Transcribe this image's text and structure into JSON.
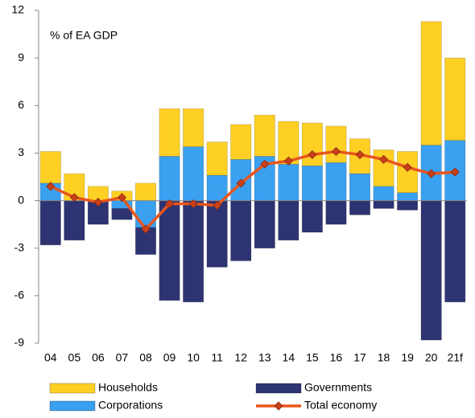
{
  "chart_data": {
    "type": "bar_line",
    "annotation": "% of  EA GDP",
    "categories": [
      "04",
      "05",
      "06",
      "07",
      "08",
      "09",
      "10",
      "11",
      "12",
      "13",
      "14",
      "15",
      "16",
      "17",
      "18",
      "19",
      "20",
      "21f"
    ],
    "series": [
      {
        "name": "Households",
        "type": "bar",
        "color": "#ffd024",
        "values": [
          2.0,
          1.7,
          0.9,
          0.6,
          1.1,
          3.0,
          2.4,
          2.1,
          2.2,
          2.6,
          2.7,
          2.7,
          2.3,
          2.2,
          2.3,
          2.6,
          7.8,
          5.2
        ]
      },
      {
        "name": "Governments",
        "type": "bar",
        "color": "#2e3472",
        "values": [
          -2.8,
          -2.5,
          -1.5,
          -0.7,
          -1.7,
          -6.3,
          -6.4,
          -4.2,
          -3.8,
          -3.0,
          -2.5,
          -2.0,
          -1.5,
          -0.9,
          -0.5,
          -0.6,
          -8.8,
          -6.4
        ]
      },
      {
        "name": "Corporations",
        "type": "bar",
        "color": "#3aa0f0",
        "values": [
          1.1,
          0,
          0,
          -0.5,
          -1.7,
          2.8,
          3.4,
          1.6,
          2.6,
          2.8,
          2.3,
          2.2,
          2.4,
          1.7,
          0.9,
          0.5,
          3.5,
          3.8
        ]
      },
      {
        "name": "Total economy",
        "type": "line",
        "color": "#e8561c",
        "values": [
          0.9,
          0.2,
          -0.1,
          0.2,
          -1.8,
          -0.2,
          -0.2,
          -0.3,
          1.1,
          2.3,
          2.5,
          2.9,
          3.1,
          2.9,
          2.6,
          2.1,
          1.7,
          1.8
        ]
      }
    ],
    "ylim": [
      -9,
      12
    ],
    "yticks": [
      -9,
      -6,
      -3,
      0,
      3,
      6,
      9,
      12
    ],
    "grid": false
  }
}
